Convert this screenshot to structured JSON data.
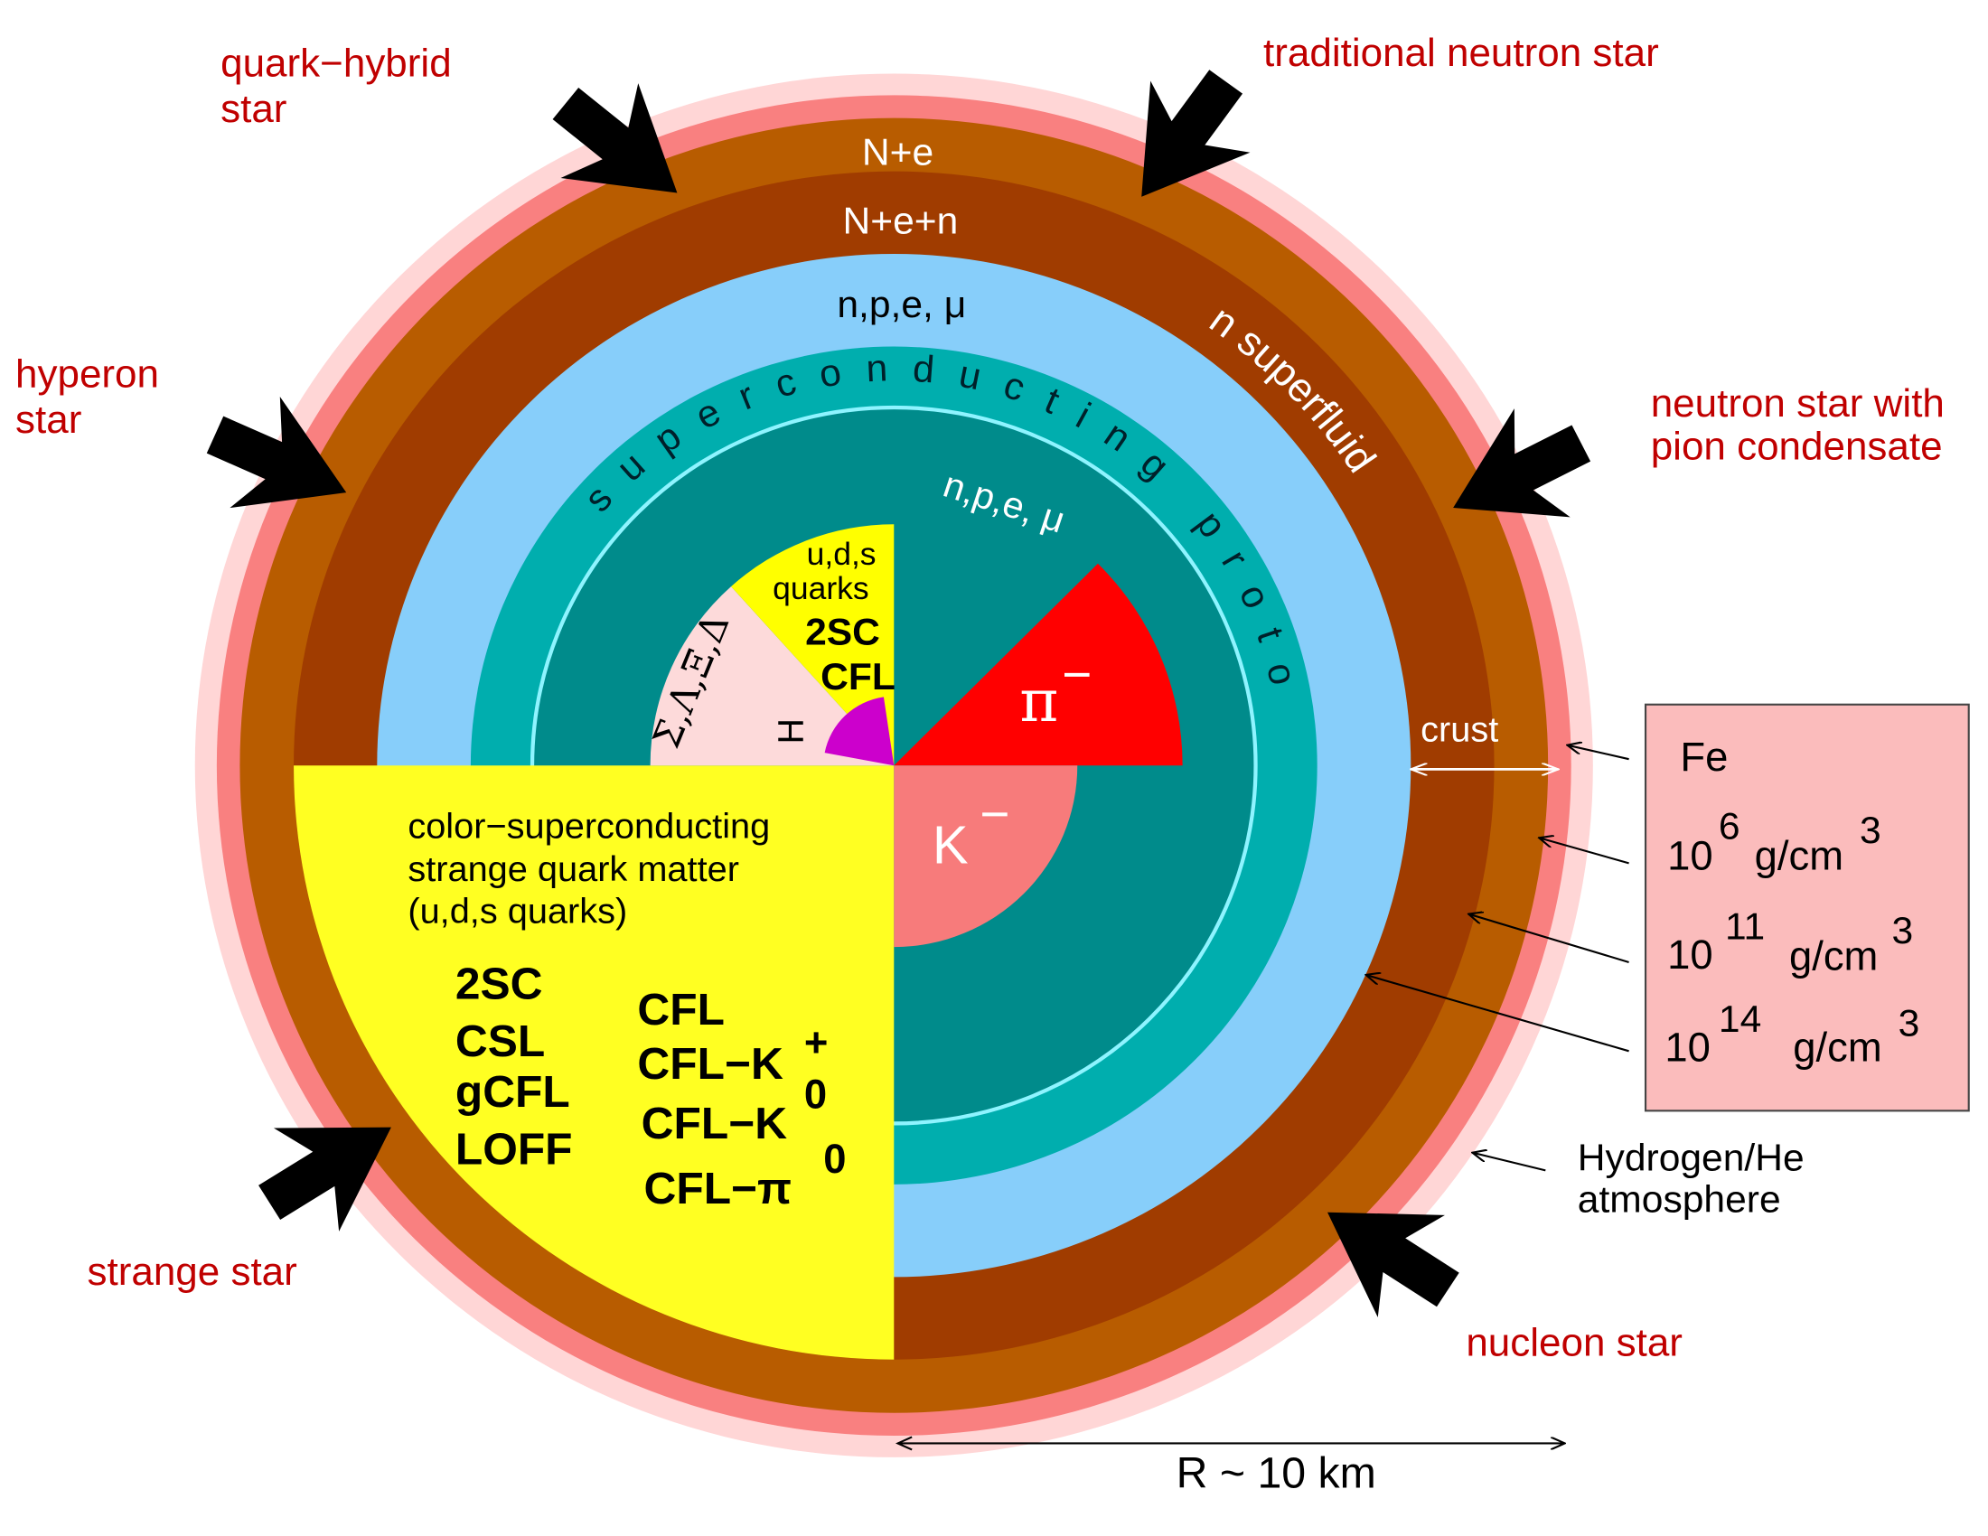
{
  "star_labels": {
    "quark_hybrid": [
      "quark−hybrid",
      "star"
    ],
    "traditional": [
      "traditional neutron star"
    ],
    "hyperon": [
      "hyperon",
      "star"
    ],
    "pion": [
      "neutron star with",
      "pion condensate"
    ],
    "strange": [
      "strange star"
    ],
    "nucleon": [
      "nucleon star"
    ]
  },
  "layers": {
    "outer_crust": "N+e",
    "inner_crust": "N+e+n",
    "npe_mu_outer": "n,p,e, μ",
    "superconducting": "superconducting protons",
    "superfluid": "n superfluid",
    "npe_mu_inner": "n,p,e, μ",
    "crust": "crust"
  },
  "core": {
    "quarks": [
      "u,d,s",
      "quarks"
    ],
    "quark_phases": [
      "2SC",
      "CFL"
    ],
    "hyperons": "Σ,Λ,Ξ,Δ",
    "h_dibaryon": "H",
    "pion": {
      "base": "π",
      "sup": "−"
    },
    "kaon": {
      "base": "K",
      "sup": "−"
    }
  },
  "strange_matter": {
    "description": [
      "color−superconducting",
      "strange quark matter",
      "(u,d,s quarks)"
    ],
    "phases_left": [
      "2SC",
      "CSL",
      "gCFL",
      "LOFF"
    ],
    "phases_right": [
      {
        "base": "CFL"
      },
      {
        "base": "CFL−K",
        "sup": "+"
      },
      {
        "base": "CFL−K",
        "sup": "0"
      },
      {
        "base": "CFL−π",
        "sup": "0"
      }
    ]
  },
  "density_box": {
    "element": "Fe",
    "densities": [
      {
        "base": "10",
        "exp": "6",
        "unit": "g/cm",
        "unit_exp": "3"
      },
      {
        "base": "10",
        "exp": "11",
        "unit": "g/cm",
        "unit_exp": "3"
      },
      {
        "base": "10",
        "exp": "14",
        "unit": "g/cm",
        "unit_exp": "3"
      }
    ]
  },
  "atmosphere": [
    "Hydrogen/He",
    "atmosphere"
  ],
  "radius": "R ~ 10 km"
}
